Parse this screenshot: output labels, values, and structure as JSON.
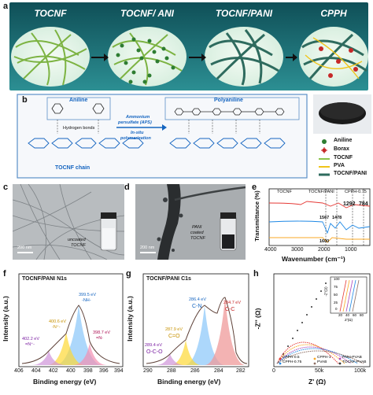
{
  "panel_a": {
    "letter": "a",
    "stages": [
      "TOCNF",
      "TOCNF/ ANI",
      "TOCNF/PANI",
      "CPPH"
    ]
  },
  "panel_b": {
    "letter": "b",
    "aniline_label": "Aniline",
    "polyaniline_label": "Polyaniline",
    "hydrogen_bonds": "Hydrogen bonds",
    "chain_label": "TOCNF chain",
    "reagent_line1": "Ammonium",
    "reagent_line2": "persulfate (APS)",
    "process_line1": "In-situ",
    "process_line2": "polymerization",
    "legend": [
      {
        "label": "Aniline",
        "color": "#2e7d32"
      },
      {
        "label": "Borax",
        "color": "#c62828"
      },
      {
        "label": "TOCNF",
        "color": "#8bc34a"
      },
      {
        "label": "PVA",
        "color": "#f0c419"
      },
      {
        "label": "TOCNF/PANI",
        "color": "#2e6b5e"
      }
    ]
  },
  "panel_c": {
    "letter": "c",
    "label_line1": "uncoated",
    "label_line2": "TOCNF",
    "scale": "200 nm"
  },
  "panel_d": {
    "letter": "d",
    "label_line1": "PANI",
    "label_line2": "coated",
    "label_line3": "TOCNF",
    "scale": "200 nm"
  },
  "panel_e": {
    "letter": "e",
    "legend": [
      {
        "label": "TOCNF",
        "color": "#e53935"
      },
      {
        "label": "TOCNF/PANI",
        "color": "#1e88e5"
      },
      {
        "label": "CPPH-0.75",
        "color": "#f9a825"
      }
    ],
    "annotations": [
      "1567",
      "1478",
      "1292",
      "784",
      "1600"
    ],
    "xlabel": "Wavenumber (cm⁻¹)",
    "ylabel": "Transmittance (%)",
    "xticks": [
      "4000",
      "3000",
      "2000",
      "1000"
    ]
  },
  "panel_f": {
    "letter": "f",
    "title": "TOCNF/PANI N1s",
    "peaks": [
      {
        "energy": "399.5 eV",
        "species": "-NH-"
      },
      {
        "energy": "400.6 eV",
        "species": "-N⁺-"
      },
      {
        "energy": "398.7 eV",
        "species": "=N-"
      },
      {
        "energy": "402.2 eV",
        "species": "=N⁺-"
      }
    ],
    "xlabel": "Binding energy (eV)",
    "ylabel": "Intensity (a.u.)",
    "xticks": [
      "406",
      "404",
      "402",
      "400",
      "398",
      "396",
      "394"
    ]
  },
  "panel_g": {
    "letter": "g",
    "title": "TOCNF/PANI C1s",
    "peaks": [
      {
        "energy": "286.4 eV",
        "species": "C-N"
      },
      {
        "energy": "284.7 eV",
        "species": "C-C"
      },
      {
        "energy": "287.9 eV",
        "species": "C=O"
      },
      {
        "energy": "289.4 eV",
        "species": "O-C-O"
      }
    ],
    "xlabel": "Binding energy (eV)",
    "ylabel": "Intensity (a.u.)",
    "xticks": [
      "290",
      "288",
      "286",
      "284",
      "282"
    ]
  },
  "panel_h": {
    "letter": "h",
    "xlabel": "Z' (Ω)",
    "ylabel": "-Z'' (Ω)",
    "xticks": [
      "0",
      "50k",
      "100k"
    ],
    "inset": {
      "xlabel": "Z'(Ω)",
      "ylabel": "-Z''(Ω)",
      "yticks": [
        "100",
        "75",
        "50",
        "25",
        "0"
      ],
      "xticks": [
        "20",
        "40",
        "60",
        "80"
      ]
    },
    "legend": [
      {
        "label": "CPPH-0.5",
        "color": "#e53935"
      },
      {
        "label": "CPPH-1",
        "color": "#f9a825"
      },
      {
        "label": "PANI-PVAB",
        "color": "#ab47bc"
      },
      {
        "label": "CPPH-0.75",
        "color": "#1e88e5"
      },
      {
        "label": "PVAB",
        "color": "#8d6e63"
      },
      {
        "label": "TOCNF-PVAB",
        "color": "#333333"
      }
    ]
  }
}
